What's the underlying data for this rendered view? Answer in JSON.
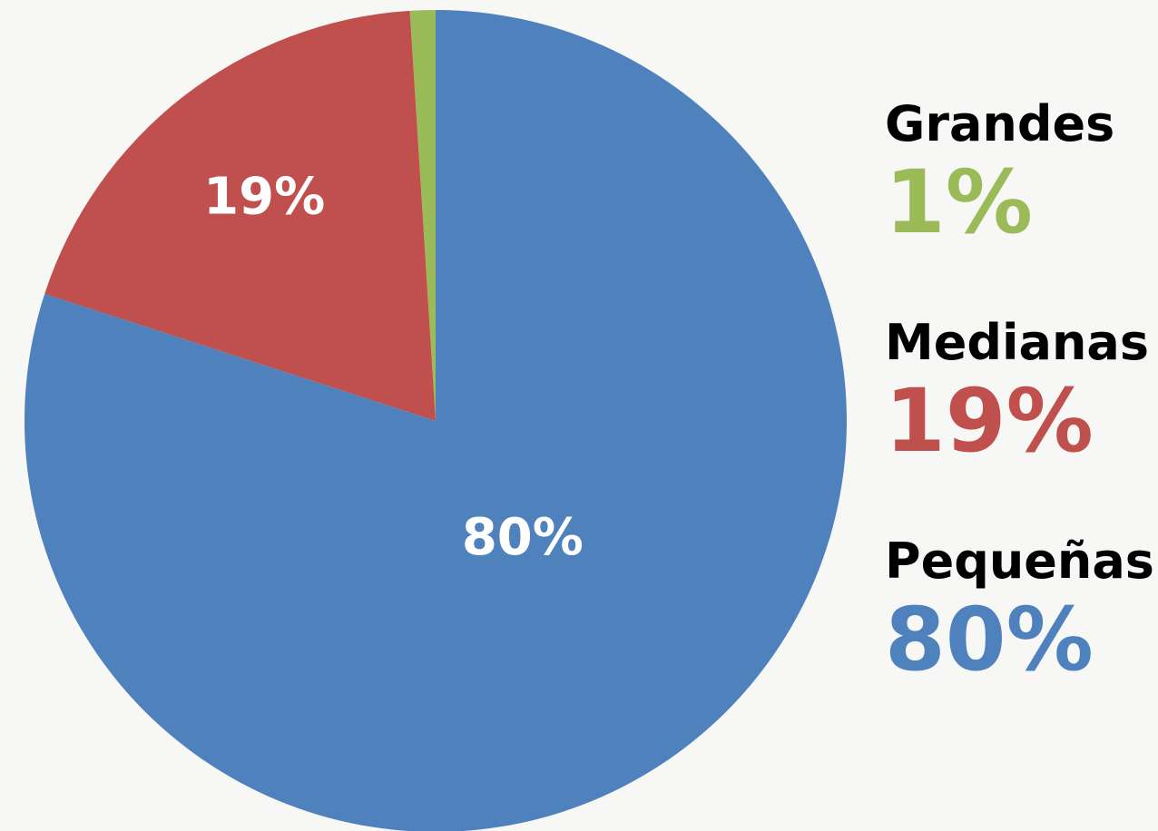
{
  "chart_data": {
    "type": "pie",
    "categories": [
      "Grandes",
      "Medianas",
      "Pequeñas"
    ],
    "values": [
      1,
      19,
      80
    ],
    "value_labels": [
      "1%",
      "19%",
      "80%"
    ],
    "colors": [
      "#9bbb59",
      "#c0504d",
      "#4f81bd"
    ]
  }
}
